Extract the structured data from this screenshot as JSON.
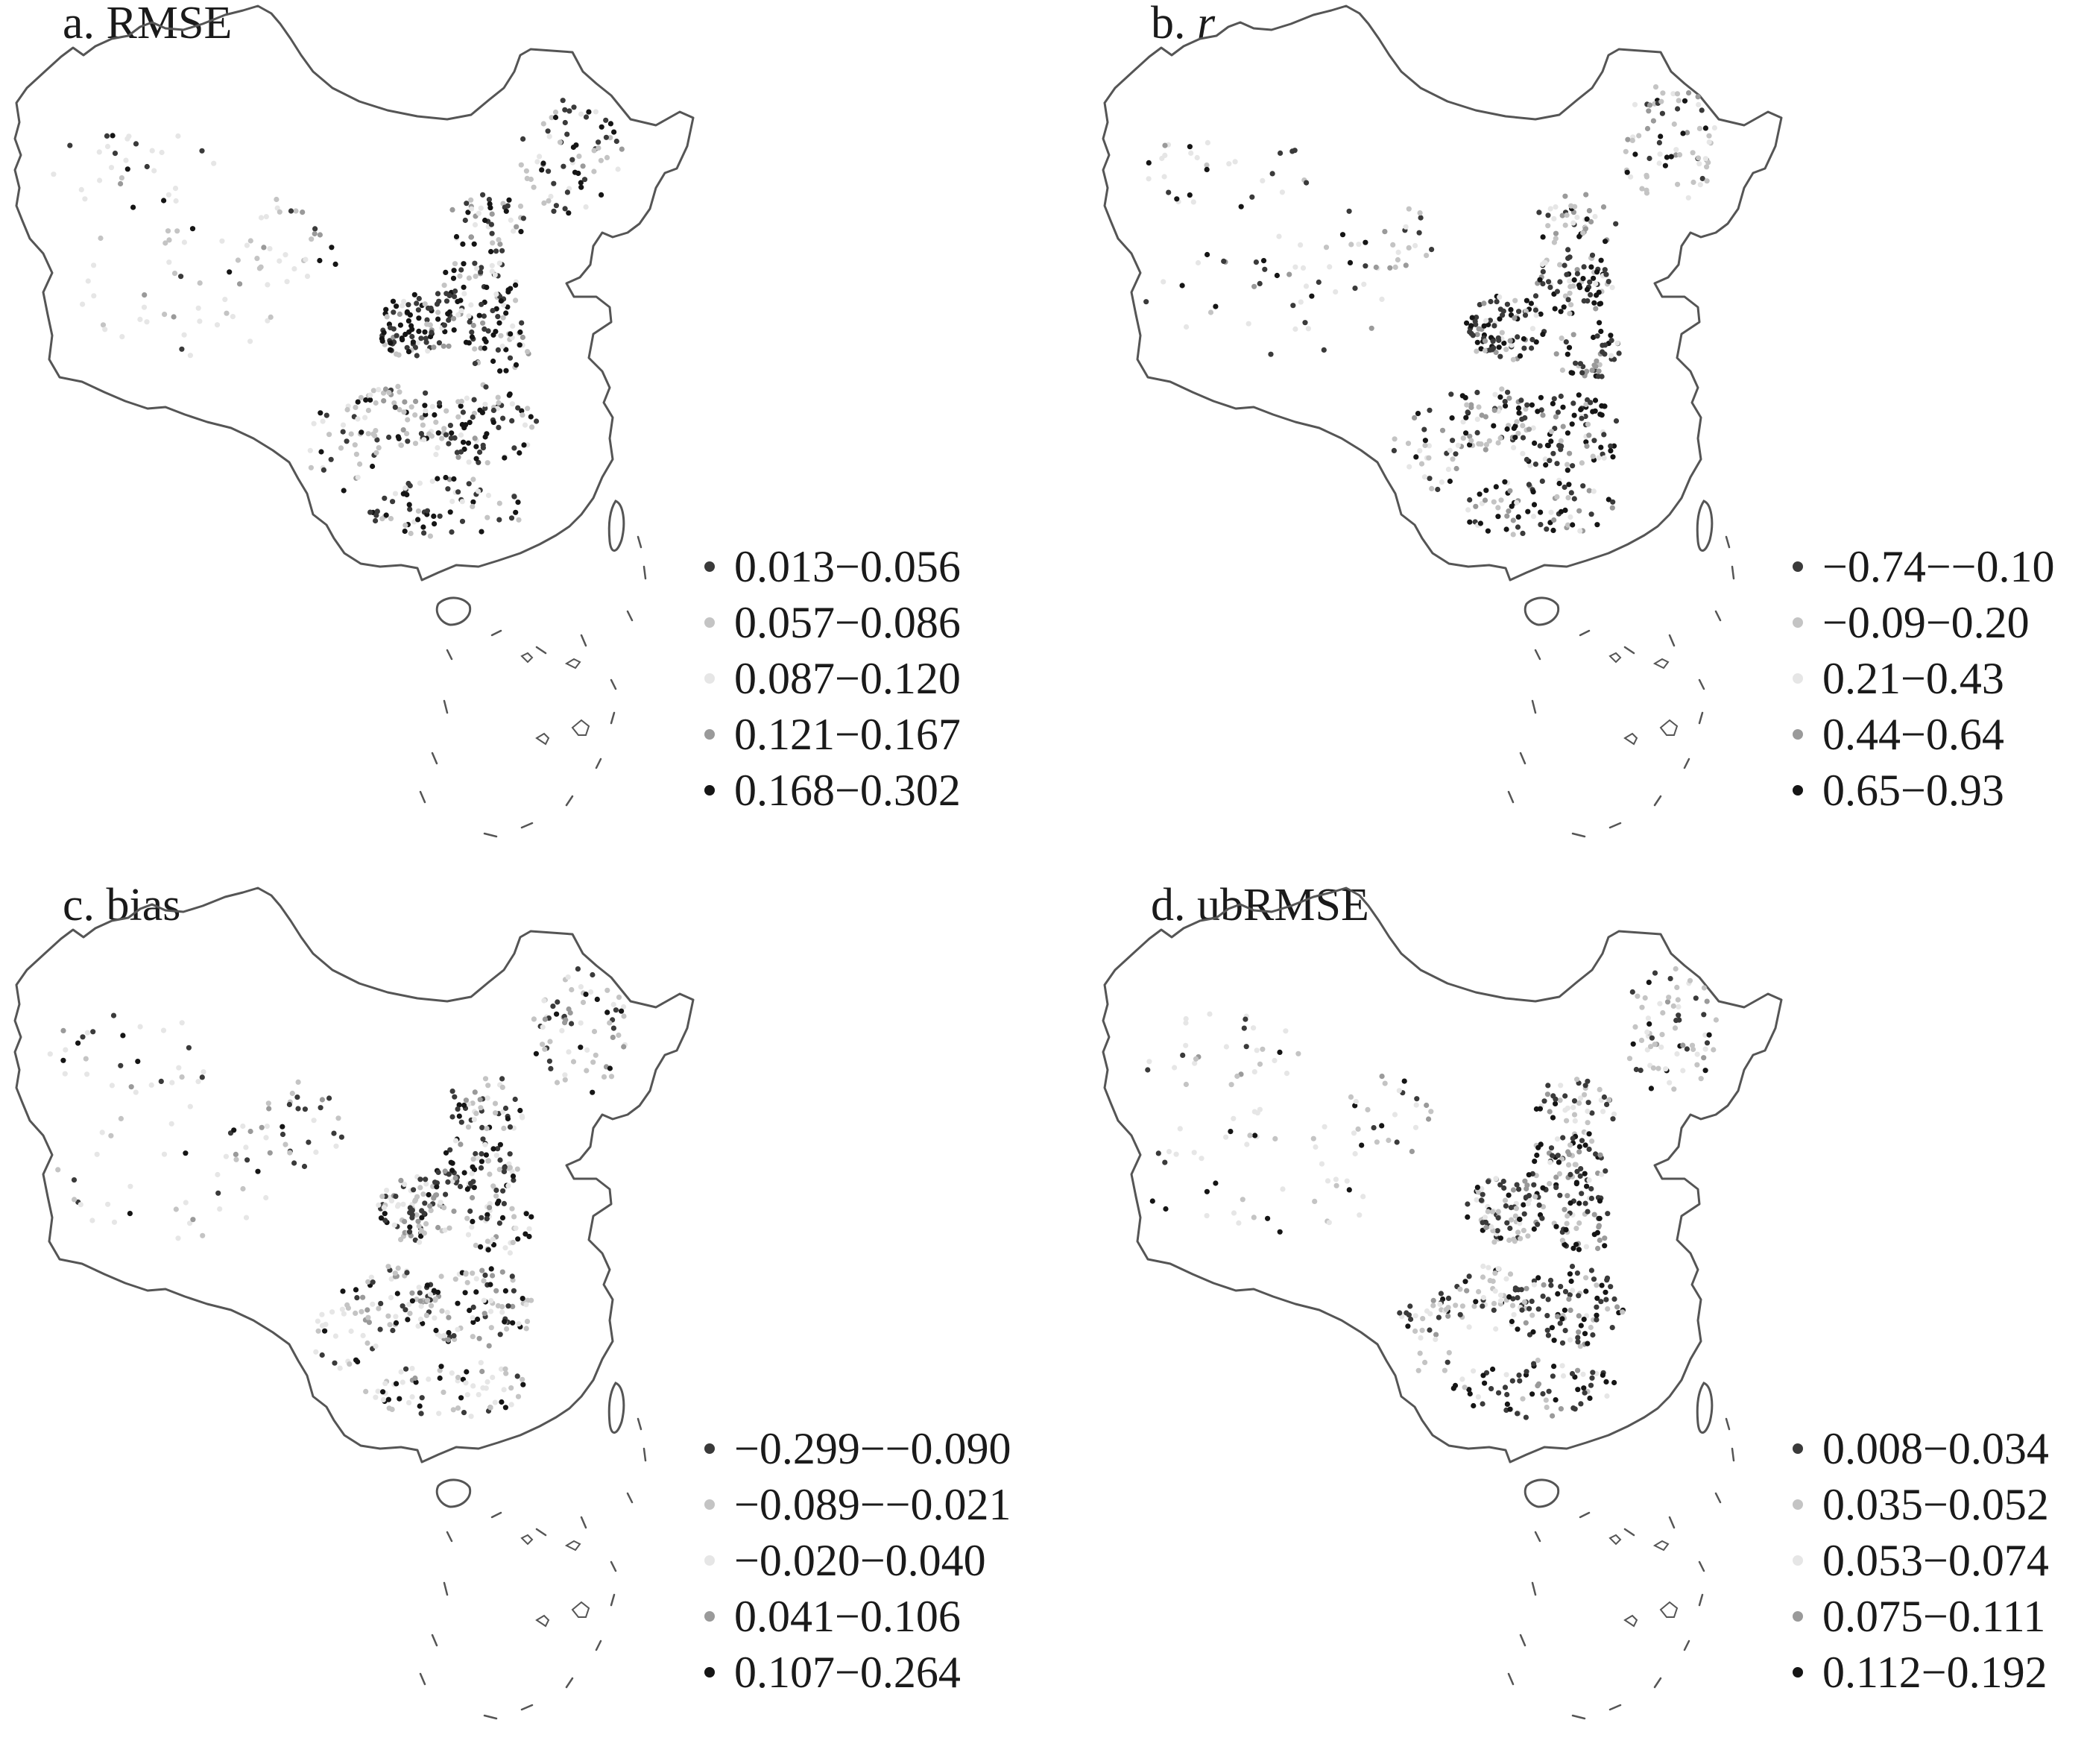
{
  "colors": {
    "class1": "#3a3a3a",
    "class2": "#c4c4c4",
    "class3": "#e6e6e6",
    "class4": "#9a9a9a",
    "class5": "#151515",
    "outline": "#555555"
  },
  "panels": [
    {
      "letter": "a.",
      "metric": "RMSE",
      "italic": false,
      "legend": [
        "0.013−0.056",
        "0.057−0.086",
        "0.087−0.120",
        "0.121−0.167",
        "0.168−0.302"
      ]
    },
    {
      "letter": "b.",
      "metric": "r",
      "italic": true,
      "legend": [
        "−0.74−−0.10",
        "−0.09−0.20",
        "0.21−0.43",
        "0.44−0.64",
        "0.65−0.93"
      ]
    },
    {
      "letter": "c.",
      "metric": "bias",
      "italic": false,
      "legend": [
        "−0.299−−0.090",
        "−0.089−−0.021",
        "−0.020−0.040",
        "0.041−0.106",
        "0.107−0.264"
      ]
    },
    {
      "letter": "d.",
      "metric": "ubRMSE",
      "italic": false,
      "legend": [
        "0.008−0.034",
        "0.035−0.052",
        "0.053−0.074",
        "0.075−0.111",
        "0.112−0.192"
      ]
    }
  ]
}
